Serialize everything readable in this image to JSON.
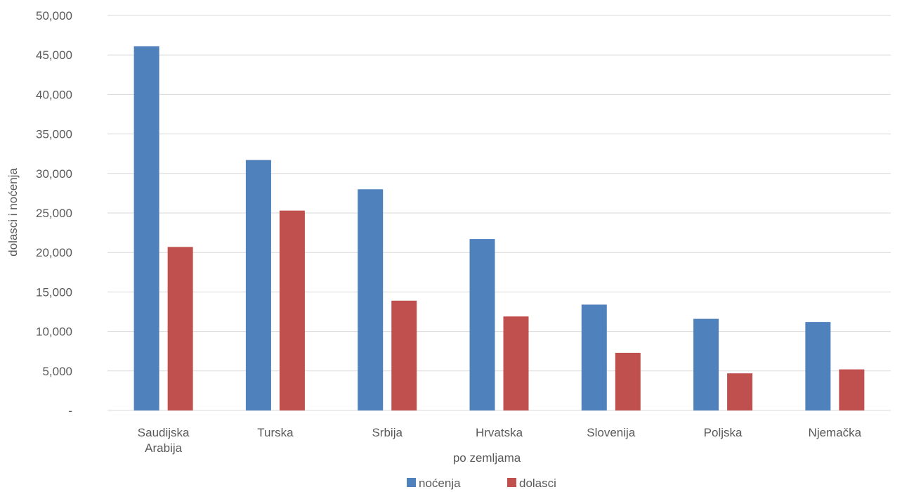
{
  "chart_data": {
    "type": "bar",
    "categories": [
      [
        "Saudijska",
        "Arabija"
      ],
      [
        "Turska"
      ],
      [
        "Srbija"
      ],
      [
        "Hrvatska"
      ],
      [
        "Slovenija"
      ],
      [
        "Poljska"
      ],
      [
        "Njemačka"
      ]
    ],
    "series": [
      {
        "name": "noćenja",
        "color": "#4f81bd",
        "values": [
          46100,
          31700,
          28000,
          21700,
          13400,
          11600,
          11200
        ]
      },
      {
        "name": "dolasci",
        "color": "#c0504d",
        "values": [
          20700,
          25300,
          13900,
          11900,
          7300,
          4700,
          5200
        ]
      }
    ],
    "xlabel": "po zemljama",
    "ylabel": "dolasci i noćenja",
    "ylim": [
      0,
      50000
    ],
    "yticks": [
      {
        "value": 0,
        "label": "-"
      },
      {
        "value": 5000,
        "label": "5,000"
      },
      {
        "value": 10000,
        "label": "10,000"
      },
      {
        "value": 15000,
        "label": "15,000"
      },
      {
        "value": 20000,
        "label": "20,000"
      },
      {
        "value": 25000,
        "label": "25,000"
      },
      {
        "value": 30000,
        "label": "30,000"
      },
      {
        "value": 35000,
        "label": "35,000"
      },
      {
        "value": 40000,
        "label": "40,000"
      },
      {
        "value": 45000,
        "label": "45,000"
      },
      {
        "value": 50000,
        "label": "50,000"
      }
    ],
    "grid": true,
    "legend_position": "bottom"
  }
}
